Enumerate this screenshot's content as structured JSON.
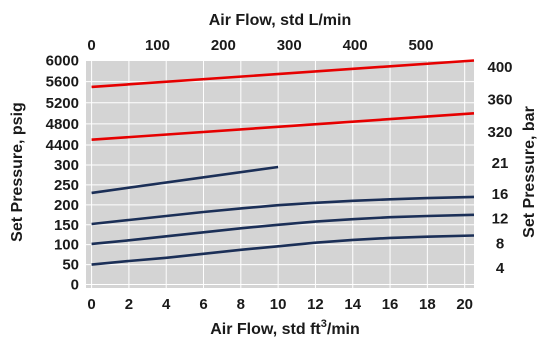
{
  "chart_data": {
    "type": "line",
    "axes": {
      "bottom": {
        "label_main": "Air Flow, std ft",
        "label_sup": "3",
        "label_tail": "/min",
        "range": [
          -0.3,
          20.5
        ],
        "ticks": [
          "0",
          "2",
          "4",
          "6",
          "8",
          "10",
          "12",
          "14",
          "16",
          "18",
          "20"
        ]
      },
      "top": {
        "label": "Air Flow, std L/min",
        "range": [
          -8.5,
          580.5
        ],
        "ticks": [
          "0",
          "100",
          "200",
          "300",
          "400",
          "500"
        ]
      },
      "left": {
        "label": "Set Pressure, psig",
        "scale": "broken",
        "ticks_low": [
          "0",
          "50",
          "100",
          "150",
          "200",
          "250",
          "300"
        ],
        "ticks_high": [
          "4400",
          "4800",
          "5200",
          "5600",
          "6000"
        ]
      },
      "right": {
        "label": "Set Pressure, bar",
        "scale": "broken",
        "ticks_low": [
          "4",
          "8",
          "12",
          "16",
          "21"
        ],
        "ticks_high": [
          "320",
          "360",
          "400"
        ]
      }
    },
    "colors": {
      "plot_bg": "#d4d4d4",
      "grid": "#ffffff",
      "high_series": "#e60000",
      "low_series": "#1b2f57"
    },
    "grid": true,
    "series": [
      {
        "group": "high",
        "x": [
          0,
          20.5
        ],
        "y": [
          5500,
          6000
        ]
      },
      {
        "group": "high",
        "x": [
          0,
          20.5
        ],
        "y": [
          4500,
          5000
        ]
      },
      {
        "group": "low",
        "x": [
          0,
          10
        ],
        "y": [
          230,
          295
        ]
      },
      {
        "group": "low",
        "x": [
          0,
          2,
          4,
          6,
          8,
          10,
          12,
          14,
          16,
          18,
          20.5
        ],
        "y": [
          152,
          162,
          172,
          182,
          191,
          199,
          205,
          210,
          214,
          217,
          220
        ]
      },
      {
        "group": "low",
        "x": [
          0,
          2,
          4,
          6,
          8,
          10,
          12,
          14,
          16,
          18,
          20.5
        ],
        "y": [
          102,
          111,
          121,
          131,
          141,
          150,
          158,
          164,
          169,
          172,
          175
        ]
      },
      {
        "group": "low",
        "x": [
          0,
          2,
          4,
          6,
          8,
          10,
          12,
          14,
          16,
          18,
          20.5
        ],
        "y": [
          50,
          59,
          67,
          77,
          87,
          96,
          105,
          112,
          117,
          120,
          123
        ]
      }
    ]
  }
}
